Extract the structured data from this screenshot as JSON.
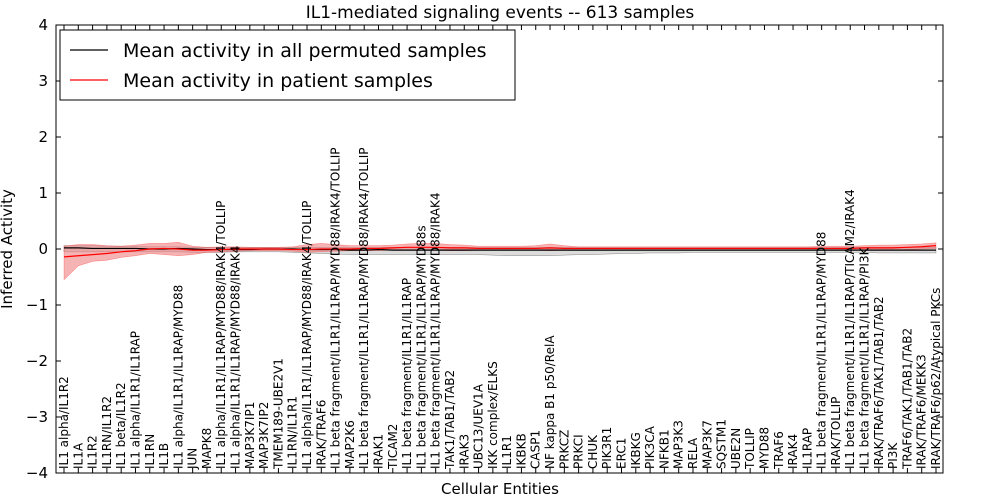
{
  "chart_data": {
    "type": "line",
    "title": "IL1-mediated signaling events -- 613 samples",
    "xlabel": "Cellular Entities",
    "ylabel": "Inferred Activity",
    "ylim": [
      -4,
      4
    ],
    "yticks": [
      4,
      3,
      2,
      1,
      0,
      -1,
      -2,
      -3,
      -4
    ],
    "yticklabels": [
      "4",
      "3",
      "2",
      "1",
      "0",
      "−1",
      "−2",
      "−3",
      "−4"
    ],
    "grid": false,
    "legend_position": "top-left",
    "legend": [
      "Mean activity in all permuted samples",
      "Mean activity in patient samples"
    ],
    "colors": {
      "permuted": "#000000",
      "patient": "#ff0000",
      "patient_band": "#f08080",
      "permuted_band": "#c0c0c0"
    },
    "categories": [
      "IL1 alpha/IL1R2",
      "IL1A",
      "IL1R2",
      "IL1RN/IL1R2",
      "IL1 beta/IL1R2",
      "IL1 alpha/IL1R1/IL1RAP",
      "IL1RN",
      "IL1B",
      "IL1 alpha/IL1R1/IL1RAP/MYD88",
      "JUN",
      "MAPK8",
      "IL1 alpha/IL1R1/IL1RAP/MYD88/IRAK4/TOLLIP",
      "IL1 alpha/IL1R1/IL1RAP/MYD88/IRAK4",
      "MAP3K7IP1",
      "MAP3K7IP2",
      "TMEM189-UBE2V1",
      "IL1RN/IL1R1",
      "IL1 alpha/IL1R1/IL1RAP/MYD88/IRAK4/TOLLIP",
      "IRAK/TRAF6",
      "IL1 beta fragment/IL1R1/IL1RAP/MYD88/IRAK4/TOLLIP",
      "MAP2K6",
      "IL1 beta fragment/IL1R1/IL1RAP/MYD88/IRAK4/TOLLIP",
      "IRAK1",
      "TICAM2",
      "IL1 beta fragment/IL1R1/IL1RAP",
      "IL1 beta fragment/IL1R1/IL1RAP/MYD88s",
      "IL1 beta fragment/IL1R1/IL1RAP/MYD88/IRAK4",
      "TAK1/TAB1/TAB2",
      "IRAK3",
      "UBC13/UEV1A",
      "IKK complex/ELKS",
      "IL1R1",
      "IKBKB",
      "CASP1",
      "NF kappa B1 p50/RelA",
      "PRKCZ",
      "PRKCI",
      "CHUK",
      "PIK3R1",
      "ERC1",
      "IKBKG",
      "PIK3CA",
      "NFKB1",
      "MAP3K3",
      "RELA",
      "MAP3K7",
      "SQSTM1",
      "UBE2N",
      "TOLLIP",
      "MYD88",
      "TRAF6",
      "IRAK4",
      "IL1RAP",
      "IL1 beta fragment/IL1R1/IL1RAP/MYD88",
      "IRAK/TOLLIP",
      "IL1 beta fragment/IL1R1/IL1RAP/TICAM2/IRAK4",
      "IL1 beta fragment/IL1R1/IL1RAP/PI3K",
      "IRAK/TRAF6/TAK1/TAB1/TAB2",
      "PI3K",
      "TRAF6/TAK1/TAB1/TAB2",
      "IRAK/TRAF6/MEKK3",
      "IRAK/TRAF6/p62/Atypical PKCs"
    ],
    "series": [
      {
        "name": "Mean activity in all permuted samples",
        "values": [
          0.02,
          0.02,
          0.01,
          0.01,
          0.01,
          0.01,
          0.0,
          0.0,
          0.01,
          0.0,
          -0.01,
          -0.01,
          -0.01,
          -0.01,
          0.0,
          0.0,
          0.0,
          -0.01,
          -0.01,
          -0.01,
          -0.02,
          -0.02,
          -0.01,
          -0.02,
          -0.02,
          -0.02,
          -0.02,
          -0.02,
          -0.02,
          -0.02,
          -0.02,
          -0.02,
          -0.02,
          -0.02,
          -0.02,
          -0.02,
          -0.02,
          -0.02,
          -0.02,
          -0.02,
          -0.02,
          -0.02,
          -0.02,
          -0.02,
          -0.02,
          -0.02,
          -0.02,
          -0.02,
          -0.02,
          -0.02,
          -0.02,
          -0.02,
          -0.02,
          -0.02,
          -0.02,
          -0.02,
          -0.02,
          -0.02,
          -0.02,
          -0.02,
          -0.02,
          -0.02
        ],
        "lower": [
          -0.05,
          -0.05,
          -0.05,
          -0.05,
          -0.05,
          -0.05,
          -0.05,
          -0.05,
          -0.05,
          -0.06,
          -0.06,
          -0.06,
          -0.05,
          -0.05,
          -0.05,
          -0.05,
          -0.06,
          -0.07,
          -0.08,
          -0.09,
          -0.1,
          -0.1,
          -0.1,
          -0.1,
          -0.1,
          -0.1,
          -0.1,
          -0.1,
          -0.1,
          -0.1,
          -0.11,
          -0.12,
          -0.12,
          -0.12,
          -0.12,
          -0.11,
          -0.1,
          -0.1,
          -0.09,
          -0.08,
          -0.08,
          -0.07,
          -0.07,
          -0.07,
          -0.06,
          -0.06,
          -0.06,
          -0.06,
          -0.06,
          -0.06,
          -0.06,
          -0.06,
          -0.06,
          -0.06,
          -0.06,
          -0.06,
          -0.06,
          -0.07,
          -0.07,
          -0.07,
          -0.07,
          -0.07
        ],
        "upper": [
          0.06,
          0.06,
          0.06,
          0.05,
          0.05,
          0.05,
          0.04,
          0.04,
          0.04,
          0.03,
          0.03,
          0.03,
          0.03,
          0.03,
          0.03,
          0.03,
          0.03,
          0.03,
          0.03,
          0.03,
          0.03,
          0.03,
          0.03,
          0.03,
          0.03,
          0.03,
          0.03,
          0.03,
          0.03,
          0.03,
          0.03,
          0.03,
          0.03,
          0.03,
          0.03,
          0.03,
          0.03,
          0.03,
          0.03,
          0.03,
          0.03,
          0.03,
          0.03,
          0.03,
          0.03,
          0.03,
          0.03,
          0.03,
          0.03,
          0.03,
          0.03,
          0.03,
          0.03,
          0.03,
          0.03,
          0.03,
          0.03,
          0.03,
          0.03,
          0.03,
          0.03,
          0.03
        ]
      },
      {
        "name": "Mean activity in patient samples",
        "values": [
          -0.14,
          -0.12,
          -0.1,
          -0.08,
          -0.05,
          -0.03,
          0.0,
          0.01,
          0.0,
          -0.02,
          -0.02,
          -0.01,
          0.0,
          0.0,
          0.0,
          0.0,
          -0.01,
          -0.01,
          0.0,
          0.0,
          0.0,
          0.01,
          0.01,
          0.02,
          0.03,
          0.03,
          0.03,
          0.02,
          0.02,
          0.01,
          0.01,
          0.01,
          0.01,
          0.01,
          0.02,
          0.01,
          0.01,
          0.01,
          0.01,
          0.01,
          0.01,
          0.01,
          0.01,
          0.01,
          0.01,
          0.01,
          0.01,
          0.01,
          0.01,
          0.01,
          0.01,
          0.01,
          0.01,
          0.01,
          0.01,
          0.01,
          0.02,
          0.02,
          0.02,
          0.03,
          0.04,
          0.06
        ],
        "lower": [
          -0.55,
          -0.3,
          -0.22,
          -0.2,
          -0.15,
          -0.12,
          -0.08,
          -0.1,
          -0.12,
          -0.1,
          -0.06,
          -0.05,
          -0.04,
          -0.03,
          -0.03,
          -0.03,
          -0.04,
          -0.06,
          -0.05,
          -0.04,
          -0.03,
          -0.03,
          -0.03,
          -0.02,
          -0.02,
          -0.02,
          -0.02,
          -0.03,
          -0.03,
          -0.02,
          -0.02,
          -0.02,
          -0.02,
          -0.02,
          -0.03,
          -0.02,
          -0.02,
          -0.02,
          -0.02,
          -0.02,
          -0.02,
          -0.02,
          -0.02,
          -0.02,
          -0.02,
          -0.02,
          -0.02,
          -0.02,
          -0.02,
          -0.02,
          -0.02,
          -0.02,
          -0.02,
          -0.02,
          -0.02,
          -0.02,
          -0.02,
          -0.02,
          -0.02,
          -0.01,
          0.0,
          0.01
        ],
        "upper": [
          0.05,
          0.08,
          0.08,
          0.06,
          0.05,
          0.07,
          0.1,
          0.1,
          0.12,
          0.05,
          0.03,
          0.04,
          0.04,
          0.03,
          0.03,
          0.03,
          0.04,
          0.08,
          0.1,
          0.08,
          0.06,
          0.06,
          0.06,
          0.07,
          0.09,
          0.1,
          0.1,
          0.08,
          0.07,
          0.05,
          0.05,
          0.05,
          0.05,
          0.06,
          0.09,
          0.06,
          0.04,
          0.04,
          0.04,
          0.04,
          0.04,
          0.04,
          0.04,
          0.04,
          0.04,
          0.04,
          0.04,
          0.04,
          0.04,
          0.04,
          0.04,
          0.04,
          0.04,
          0.05,
          0.05,
          0.05,
          0.06,
          0.07,
          0.07,
          0.08,
          0.09,
          0.11
        ]
      }
    ]
  }
}
